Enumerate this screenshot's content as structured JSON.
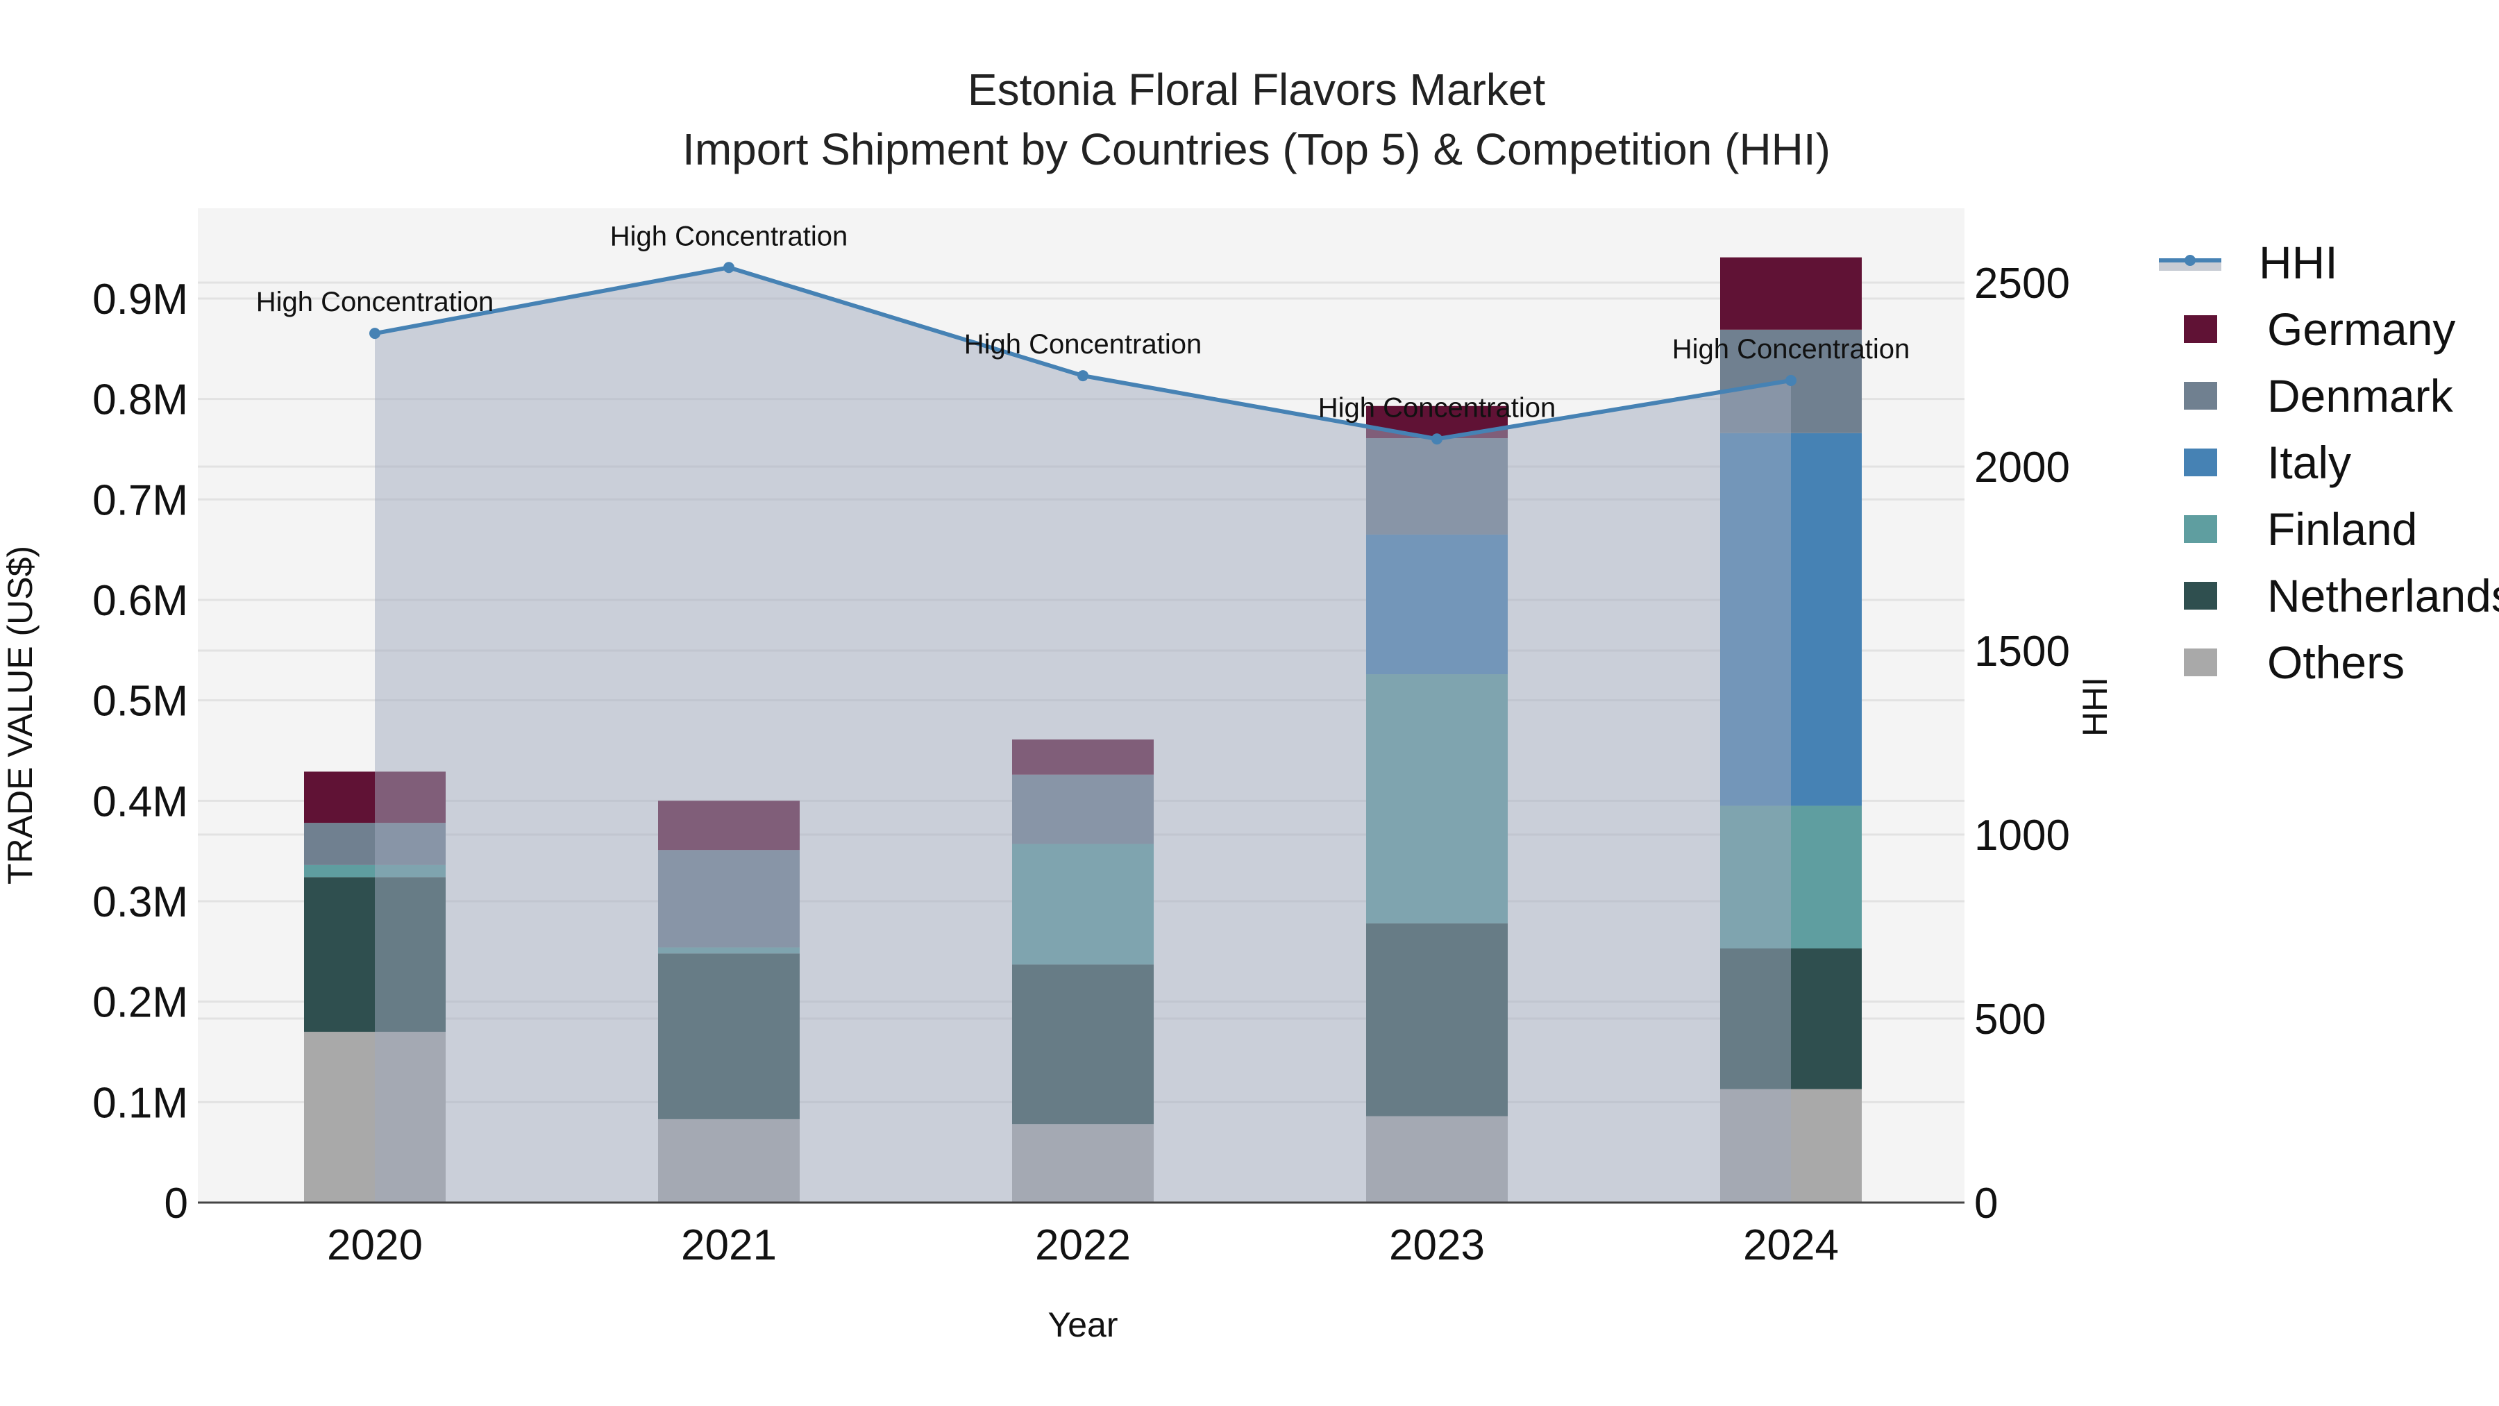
{
  "title": {
    "line1": "Estonia Floral Flavors Market",
    "line2": "Import Shipment by Countries (Top 5) & Competition (HHI)"
  },
  "axes": {
    "x_label": "Year",
    "y_left_label": "TRADE VALUE (US$)",
    "y_right_label": "HHI",
    "y_left_ticks": [
      "0",
      "0.1M",
      "0.2M",
      "0.3M",
      "0.4M",
      "0.5M",
      "0.6M",
      "0.7M",
      "0.8M",
      "0.9M"
    ],
    "y_right_ticks": [
      "0",
      "500",
      "1000",
      "1500",
      "2000",
      "2500"
    ]
  },
  "legend": {
    "items": [
      {
        "label": "HHI",
        "type": "line",
        "color": "#4682b4"
      },
      {
        "label": "Germany",
        "type": "bar",
        "color": "#601235"
      },
      {
        "label": "Denmark",
        "type": "bar",
        "color": "#708090"
      },
      {
        "label": "Italy",
        "type": "bar",
        "color": "#4682b4"
      },
      {
        "label": "Finland",
        "type": "bar",
        "color": "#5f9ea0"
      },
      {
        "label": "Netherlands",
        "type": "bar",
        "color": "#2f4f4f"
      },
      {
        "label": "Others",
        "type": "bar",
        "color": "#a9a9a9"
      }
    ]
  },
  "chart_data": {
    "type": "bar",
    "stacked": true,
    "title": "Estonia Floral Flavors Market — Import Shipment by Countries (Top 5) & Competition (HHI)",
    "xlabel": "Year",
    "ylabel": "TRADE VALUE (US$)",
    "y2label": "HHI",
    "ylim": [
      0,
      0.985
    ],
    "y2lim": [
      0,
      2680
    ],
    "categories": [
      "2020",
      "2021",
      "2022",
      "2023",
      "2024"
    ],
    "units": "million US$",
    "series": [
      {
        "name": "Others",
        "color": "#a9a9a9",
        "values": [
          0.17,
          0.083,
          0.078,
          0.086,
          0.113
        ]
      },
      {
        "name": "Netherlands",
        "color": "#2f4f4f",
        "values": [
          0.154,
          0.165,
          0.159,
          0.192,
          0.14
        ]
      },
      {
        "name": "Finland",
        "color": "#5f9ea0",
        "values": [
          0.012,
          0.006,
          0.12,
          0.248,
          0.142
        ]
      },
      {
        "name": "Italy",
        "color": "#4682b4",
        "values": [
          0.0,
          0.0,
          0.0,
          0.139,
          0.371
        ]
      },
      {
        "name": "Denmark",
        "color": "#708090",
        "values": [
          0.042,
          0.097,
          0.069,
          0.096,
          0.103
        ]
      },
      {
        "name": "Germany",
        "color": "#601235",
        "values": [
          0.051,
          0.049,
          0.035,
          0.032,
          0.072
        ]
      }
    ],
    "line_series": {
      "name": "HHI",
      "axis": "right",
      "color": "#4682b4",
      "fill": "tozeroy",
      "values": [
        2362,
        2541,
        2247,
        2075,
        2234
      ],
      "annotations": [
        "High Concentration",
        "High Concentration",
        "High Concentration",
        "High Concentration",
        "High Concentration"
      ]
    },
    "grid": true,
    "legend_position": "right"
  }
}
